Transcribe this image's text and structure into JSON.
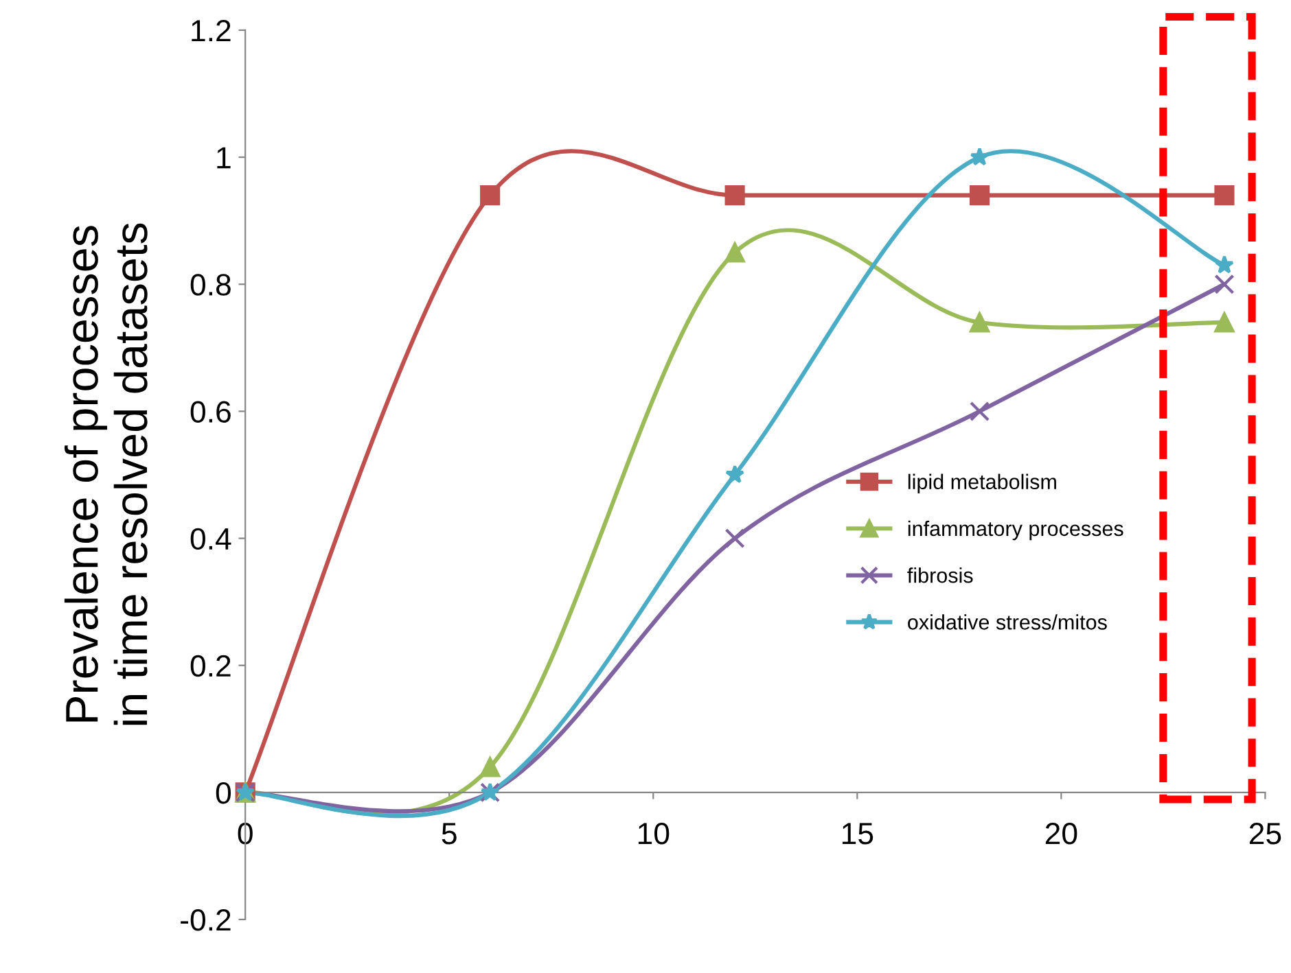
{
  "chart_data": {
    "type": "line",
    "ylabel": "Prevalence of processes\nin time resolved datasets",
    "x": [
      0,
      6,
      12,
      18,
      24
    ],
    "series": [
      {
        "name": "lipid metabolism",
        "color": "#c0504d",
        "marker": "square",
        "values": [
          0,
          0.94,
          0.94,
          0.94,
          0.94
        ]
      },
      {
        "name": "infammatory processes",
        "color": "#9bbb59",
        "marker": "triangle",
        "values": [
          0,
          0.04,
          0.85,
          0.74,
          0.74
        ]
      },
      {
        "name": "fibrosis",
        "color": "#8064a2",
        "marker": "cross",
        "values": [
          0,
          0,
          0.4,
          0.6,
          0.8
        ]
      },
      {
        "name": "oxidative stress/mitos",
        "color": "#4bacc6",
        "marker": "star",
        "values": [
          0,
          0,
          0.5,
          1.0,
          0.83
        ]
      }
    ],
    "xlim": [
      0,
      25
    ],
    "xticks": [
      0,
      5,
      10,
      15,
      20,
      25
    ],
    "ylim": [
      -0.2,
      1.2
    ],
    "yticks": [
      -0.2,
      0,
      0.2,
      0.4,
      0.6,
      0.8,
      1,
      1.2
    ],
    "legend": "bottom right",
    "grid": false,
    "line_style": "solid"
  }
}
